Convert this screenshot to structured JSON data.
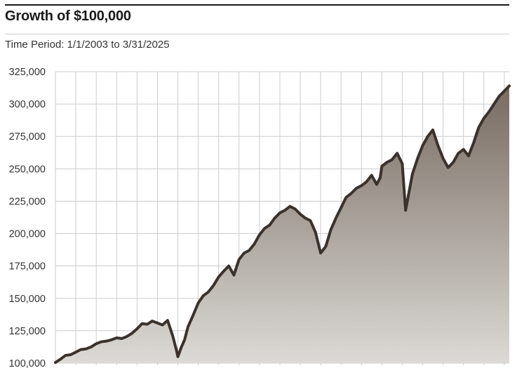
{
  "title": "Growth of $100,000",
  "subtitle": "Time Period: 1/1/2003 to 3/31/2025",
  "colors": {
    "line": "#3a322b",
    "area_top": "#776b61",
    "area_bottom": "#dcdad6",
    "grid": "#cccccc",
    "rule": "#1a1a1a"
  },
  "chart_data": {
    "type": "area",
    "title": "Growth of $100,000",
    "subtitle": "Time Period: 1/1/2003 to 3/31/2025",
    "xlabel": "",
    "ylabel": "",
    "xlim": [
      "2003-01-01",
      "2025-03-31"
    ],
    "ylim": [
      100000,
      325000
    ],
    "y_ticks": [
      100000,
      125000,
      150000,
      175000,
      200000,
      225000,
      250000,
      275000,
      300000,
      325000
    ],
    "y_tick_labels": [
      "100,000",
      "125,000",
      "150,000",
      "175,000",
      "200,000",
      "225,000",
      "250,000",
      "275,000",
      "300,000",
      "325,000"
    ],
    "x_gridlines": [
      "2004-01-01",
      "2005-01-01",
      "2006-01-01",
      "2007-01-01",
      "2008-01-01",
      "2009-01-01",
      "2010-01-01",
      "2011-01-01",
      "2012-01-01",
      "2013-01-01",
      "2014-01-01",
      "2015-01-01",
      "2016-01-01",
      "2017-01-01",
      "2018-01-01",
      "2019-01-01",
      "2020-01-01",
      "2021-01-01",
      "2022-01-01",
      "2023-01-01",
      "2024-01-01",
      "2025-01-01"
    ],
    "grid": true,
    "legend": "none",
    "series": [
      {
        "x": [
          "2003-01-01",
          "2003-04-01",
          "2003-07-01",
          "2003-10-01",
          "2004-01-01",
          "2004-04-01",
          "2004-07-01",
          "2004-10-01",
          "2005-01-01",
          "2005-04-01",
          "2005-07-01",
          "2005-10-01",
          "2006-01-01",
          "2006-04-01",
          "2006-07-01",
          "2006-10-01",
          "2007-01-01",
          "2007-04-01",
          "2007-07-01",
          "2007-10-01",
          "2008-01-01",
          "2008-04-01",
          "2008-07-01",
          "2008-10-01",
          "2008-12-01",
          "2009-01-01",
          "2009-03-01",
          "2009-05-01",
          "2009-07-01",
          "2009-10-01",
          "2010-01-01",
          "2010-04-01",
          "2010-07-01",
          "2010-10-01",
          "2011-01-01",
          "2011-04-01",
          "2011-07-01",
          "2011-10-01",
          "2012-01-01",
          "2012-04-01",
          "2012-07-01",
          "2012-10-01",
          "2013-01-01",
          "2013-04-01",
          "2013-07-01",
          "2013-10-01",
          "2014-01-01",
          "2014-04-01",
          "2014-07-01",
          "2014-10-01",
          "2015-01-01",
          "2015-04-01",
          "2015-07-01",
          "2015-10-01",
          "2016-01-01",
          "2016-04-01",
          "2016-07-01",
          "2016-10-01",
          "2017-01-01",
          "2017-04-01",
          "2017-07-01",
          "2017-10-01",
          "2018-01-01",
          "2018-04-01",
          "2018-07-01",
          "2018-10-01",
          "2018-12-01",
          "2019-01-01",
          "2019-04-01",
          "2019-07-01",
          "2019-10-01",
          "2020-01-01",
          "2020-03-01",
          "2020-05-01",
          "2020-07-01",
          "2020-10-01",
          "2021-01-01",
          "2021-04-01",
          "2021-07-01",
          "2021-10-01",
          "2022-01-01",
          "2022-04-01",
          "2022-07-01",
          "2022-10-01",
          "2023-01-01",
          "2023-04-01",
          "2023-07-01",
          "2023-10-01",
          "2024-01-01",
          "2024-04-01",
          "2024-07-01",
          "2024-10-01",
          "2025-01-01",
          "2025-03-31"
        ],
        "values": [
          100500,
          103000,
          106000,
          106500,
          108500,
          110500,
          111000,
          112500,
          115000,
          116500,
          117000,
          118000,
          119500,
          119000,
          120500,
          123000,
          126500,
          130500,
          130000,
          132500,
          131000,
          129500,
          133000,
          121000,
          111000,
          105000,
          112000,
          118000,
          128000,
          137000,
          146500,
          152000,
          155000,
          160000,
          166500,
          171000,
          175000,
          168000,
          180000,
          185000,
          187000,
          192000,
          199000,
          204000,
          206500,
          212000,
          216000,
          218000,
          221000,
          219000,
          215000,
          212000,
          210000,
          201000,
          185000,
          190000,
          203000,
          212000,
          220000,
          228000,
          231000,
          235000,
          237000,
          240000,
          245000,
          238000,
          243000,
          252000,
          255000,
          257000,
          262000,
          254000,
          218000,
          232000,
          246000,
          258000,
          268000,
          275000,
          280000,
          268000,
          258000,
          251000,
          255000,
          262000,
          265000,
          260000,
          270000,
          282000,
          289000,
          294000,
          300000,
          306000,
          310000,
          314000
        ]
      }
    ]
  }
}
